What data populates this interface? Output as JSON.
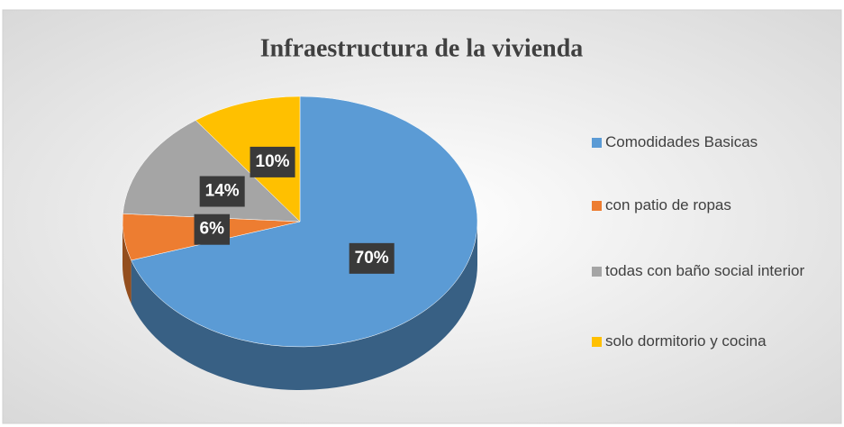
{
  "chart_data": {
    "type": "pie",
    "title": "Infraestructura de la vivienda",
    "categories": [
      "Comodidades Basicas",
      "con patio de ropas",
      "todas con baño social interior",
      "solo dormitorio y cocina"
    ],
    "values": [
      70,
      6,
      14,
      10
    ],
    "value_labels": [
      "70%",
      "6%",
      "14%",
      "10%"
    ],
    "colors": [
      "#5b9bd5",
      "#ed7d31",
      "#a5a5a5",
      "#ffc000"
    ],
    "legend": "right"
  }
}
